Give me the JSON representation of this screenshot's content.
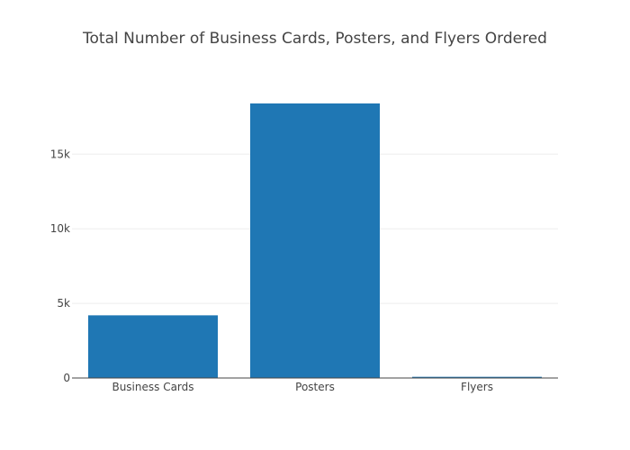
{
  "chart_data": {
    "type": "bar",
    "title": "Total Number of Business Cards, Posters, and Flyers Ordered",
    "xlabel": "",
    "ylabel": "",
    "categories": [
      "Business Cards",
      "Posters",
      "Flyers"
    ],
    "values": [
      4200,
      18400,
      80
    ],
    "ylim": [
      0,
      19300
    ],
    "yticks": [
      0,
      5000,
      10000,
      15000
    ],
    "ytick_labels": [
      "0",
      "5k",
      "10k",
      "15k"
    ],
    "grid": true,
    "legend": "none",
    "bar_color": "#1f77b4",
    "grid_color": "#eeeeee",
    "axis_color": "#444444"
  }
}
